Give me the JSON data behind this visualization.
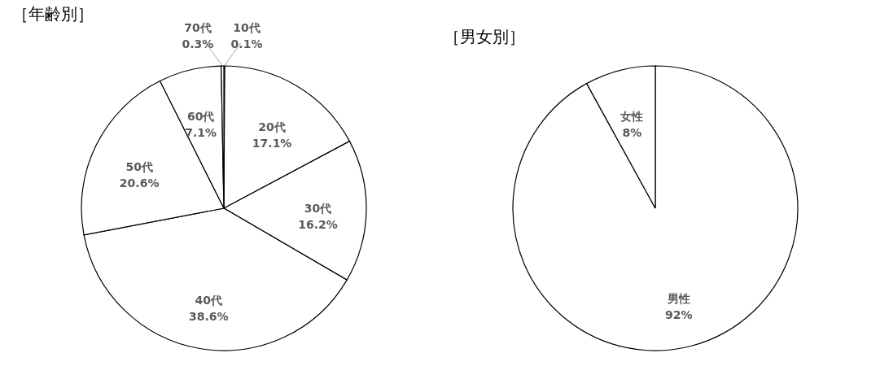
{
  "chart_data": [
    {
      "type": "pie",
      "title": "［年齢別］",
      "categories": [
        "10代",
        "20代",
        "30代",
        "40代",
        "50代",
        "60代",
        "70代"
      ],
      "values": [
        0.1,
        17.1,
        16.2,
        38.6,
        20.6,
        7.1,
        0.3
      ],
      "value_labels": [
        "0.1%",
        "17.1%",
        "16.2%",
        "38.6%",
        "20.6%",
        "7.1%",
        "0.3%"
      ],
      "colors": [
        "#ffffff",
        "#ffffff",
        "#ffffff",
        "#ffffff",
        "#ffffff",
        "#ffffff",
        "#ffffff"
      ]
    },
    {
      "type": "pie",
      "title": "［男女別］",
      "categories": [
        "男性",
        "女性"
      ],
      "values": [
        92,
        8
      ],
      "value_labels": [
        "92%",
        "8%"
      ],
      "colors": [
        "#ffffff",
        "#ffffff"
      ]
    }
  ]
}
